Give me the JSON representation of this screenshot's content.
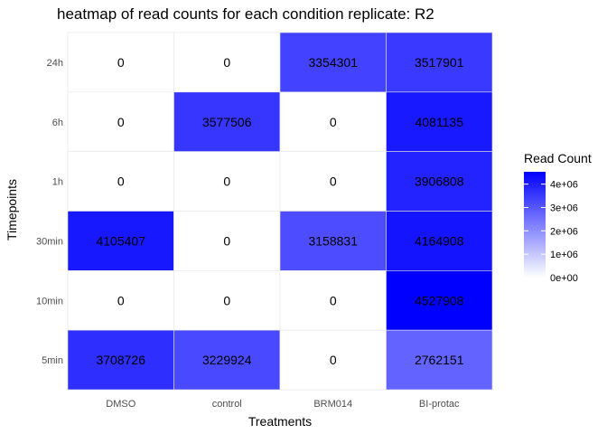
{
  "chart_data": {
    "type": "heatmap",
    "title": "heatmap of read counts for each condition replicate: R2",
    "xlabel": "Treatments",
    "ylabel": "Timepoints",
    "x_categories": [
      "DMSO",
      "control",
      "BRM014",
      "BI-protac"
    ],
    "y_categories": [
      "24h",
      "6h",
      "1h",
      "30min",
      "10min",
      "5min"
    ],
    "values": [
      [
        0,
        0,
        3354301,
        3517901
      ],
      [
        0,
        3577506,
        0,
        4081135
      ],
      [
        0,
        0,
        0,
        3906808
      ],
      [
        4105407,
        0,
        3158831,
        4164908
      ],
      [
        0,
        0,
        0,
        4527908
      ],
      [
        3708726,
        3229924,
        0,
        2762151
      ]
    ],
    "value_labels": [
      [
        "0",
        "0",
        "3354301",
        "3517901"
      ],
      [
        "0",
        "3577506",
        "0",
        "4081135"
      ],
      [
        "0",
        "0",
        "0",
        "3906808"
      ],
      [
        "4105407",
        "0",
        "3158831",
        "4164908"
      ],
      [
        "0",
        "0",
        "0",
        "4527908"
      ],
      [
        "3708726",
        "3229924",
        "0",
        "2762151"
      ]
    ],
    "legend": {
      "title": "Read Count",
      "ticks": [
        0,
        1000000,
        2000000,
        3000000,
        4000000
      ],
      "tick_labels": [
        "0e+00",
        "1e+06",
        "2e+06",
        "3e+06",
        "4e+06"
      ],
      "low_color": "#ffffff",
      "high_color": "#0000ff",
      "placement": "right"
    },
    "value_range": [
      0,
      4527908
    ],
    "grid": true
  }
}
